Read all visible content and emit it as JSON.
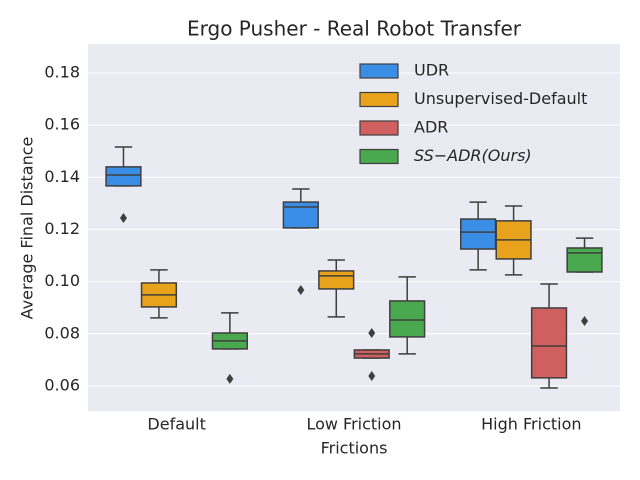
{
  "chart_data": {
    "type": "box",
    "title": "Ergo Pusher - Real Robot Transfer",
    "xlabel": "Frictions",
    "ylabel": "Average Final Distance",
    "categories": [
      "Default",
      "Low Friction",
      "High Friction"
    ],
    "ylim": [
      0.0504,
      0.1911
    ],
    "yticks": [
      0.06,
      0.08,
      {
        "value": 0.1,
        "label": "0.10"
      },
      0.12,
      0.14,
      0.16,
      0.18
    ],
    "grid": true,
    "legend": "upper right",
    "series": [
      {
        "name": "UDR",
        "color": "#3a8ee6",
        "boxes": [
          {
            "whislo": 0.1367,
            "q1": 0.1367,
            "med": 0.1409,
            "q3": 0.144,
            "whishi": 0.1516,
            "fliers": [
              0.1244
            ]
          },
          {
            "whislo": 0.1206,
            "q1": 0.1206,
            "med": 0.1286,
            "q3": 0.1305,
            "whishi": 0.1355,
            "fliers": [
              0.0968
            ]
          },
          {
            "whislo": 0.1045,
            "q1": 0.1125,
            "med": 0.119,
            "q3": 0.124,
            "whishi": 0.1305,
            "fliers": []
          }
        ]
      },
      {
        "name": "Unsupervised-Default",
        "color": "#e8a21b",
        "boxes": [
          {
            "whislo": 0.0861,
            "q1": 0.0903,
            "med": 0.0949,
            "q3": 0.0995,
            "whishi": 0.1045,
            "fliers": []
          },
          {
            "whislo": 0.0865,
            "q1": 0.0972,
            "med": 0.1022,
            "q3": 0.1041,
            "whishi": 0.1083,
            "fliers": []
          },
          {
            "whislo": 0.1026,
            "q1": 0.1087,
            "med": 0.116,
            "q3": 0.1233,
            "whishi": 0.129,
            "fliers": []
          }
        ]
      },
      {
        "name": "ADR",
        "color": "#d0605e",
        "boxes": [
          null,
          {
            "whislo": 0.0707,
            "q1": 0.0707,
            "med": 0.0723,
            "q3": 0.0738,
            "whishi": 0.0738,
            "fliers": [
              0.0803,
              0.0638
            ]
          },
          {
            "whislo": 0.0592,
            "q1": 0.0631,
            "med": 0.0753,
            "q3": 0.0899,
            "whishi": 0.0991,
            "fliers": []
          }
        ]
      },
      {
        "name": "SS−ADR(Ours)",
        "color": "#4aa84f",
        "boxes": [
          {
            "whislo": 0.0742,
            "q1": 0.0742,
            "med": 0.0773,
            "q3": 0.0803,
            "whishi": 0.088,
            "fliers": [
              0.0627
            ]
          },
          {
            "whislo": 0.0723,
            "q1": 0.0788,
            "med": 0.0853,
            "q3": 0.0926,
            "whishi": 0.1018,
            "fliers": []
          },
          {
            "whislo": 0.1037,
            "q1": 0.1037,
            "med": 0.111,
            "q3": 0.1129,
            "whishi": 0.1167,
            "fliers": [
              0.0849
            ]
          }
        ]
      }
    ]
  }
}
